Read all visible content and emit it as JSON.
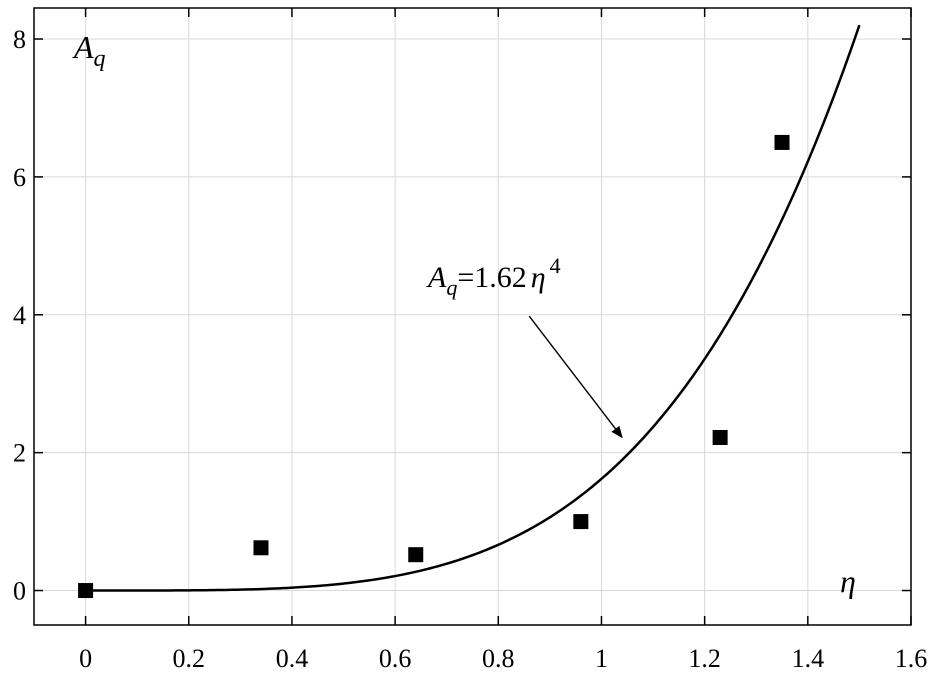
{
  "chart_data": {
    "type": "scatter",
    "x_ticks": [
      "0",
      "0.2",
      "0.4",
      "0.6",
      "0.8",
      "1",
      "1.2",
      "1.4",
      "1.6"
    ],
    "y_ticks": [
      "0",
      "2",
      "4",
      "6",
      "8"
    ],
    "xlim": [
      -0.1,
      1.6
    ],
    "ylim": [
      -0.5,
      8.45
    ],
    "grid": true,
    "xlabel": "η",
    "ylabel": {
      "symbol": "A",
      "subscript": "q"
    },
    "points": [
      {
        "x": 0,
        "y": 0
      },
      {
        "x": 0.34,
        "y": 0.62
      },
      {
        "x": 0.64,
        "y": 0.52
      },
      {
        "x": 0.96,
        "y": 1.0
      },
      {
        "x": 1.23,
        "y": 2.22
      },
      {
        "x": 1.35,
        "y": 6.5
      }
    ],
    "fit": {
      "coefficient": 1.62,
      "exponent": 4,
      "x_range": [
        0,
        1.5
      ],
      "label": {
        "symbol": "A",
        "subscript": "q",
        "rhs": "=1.62",
        "var": "η",
        "power": "4"
      },
      "arrow_from": {
        "x": 0.86,
        "y": 3.98
      },
      "arrow_to": {
        "x": 1.04,
        "y": 2.22
      }
    },
    "marker": "filled-square",
    "colors": {
      "line": "#000000",
      "markers": "#000000",
      "grid": "#d9d9d9"
    }
  }
}
